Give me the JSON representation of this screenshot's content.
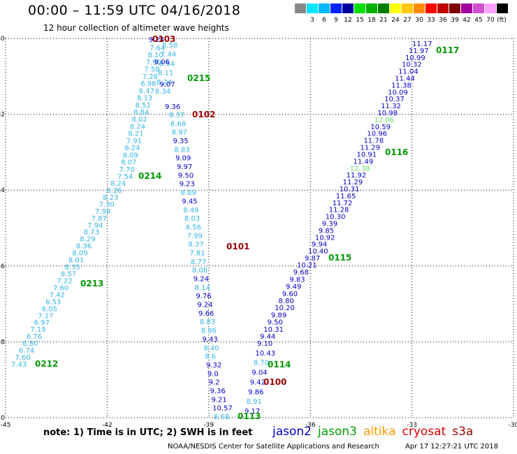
{
  "title": "00:00 – 11:59 UTC 04/16/2018",
  "subtitle": "12 hour collection of altimeter wave heights",
  "legend": {
    "unit": "(ft)",
    "levels": [
      {
        "label": "",
        "color": "#888888"
      },
      {
        "label": "3",
        "color": "#00e5ff"
      },
      {
        "label": "6",
        "color": "#00b8ff"
      },
      {
        "label": "9",
        "color": "#0022ff"
      },
      {
        "label": "12",
        "color": "#0000a0"
      },
      {
        "label": "15",
        "color": "#00e000"
      },
      {
        "label": "18",
        "color": "#00b000"
      },
      {
        "label": "21",
        "color": "#008000"
      },
      {
        "label": "24",
        "color": "#ffff00"
      },
      {
        "label": "27",
        "color": "#ffc800"
      },
      {
        "label": "30",
        "color": "#ff8c00"
      },
      {
        "label": "33",
        "color": "#ff0000"
      },
      {
        "label": "36",
        "color": "#c00000"
      },
      {
        "label": "39",
        "color": "#800000"
      },
      {
        "label": "42",
        "color": "#a000a0"
      },
      {
        "label": "45",
        "color": "#d050d0"
      },
      {
        "label": "70",
        "color": "#ffa0ff"
      },
      {
        "label": "(ft)",
        "color": "#000000"
      }
    ]
  },
  "axes": {
    "lat_ticks": [
      "-30",
      "-32",
      "-34",
      "-36",
      "-38",
      "-40"
    ],
    "lon_ticks": [
      "-45",
      "-42",
      "-39",
      "-36",
      "-33",
      "-30"
    ]
  },
  "colors": {
    "cyan": "#33b5e5",
    "blue": "#0000cc",
    "green": "#009900",
    "lightgreen": "#66e066",
    "maroon": "#990000"
  },
  "tracks": {
    "track_0213_0212": {
      "color": "cyan",
      "values": [
        "8.24",
        "8.26",
        "8.23",
        "7.30",
        "7.99",
        "7.87",
        "7.94",
        "8.73",
        "8.29",
        "8.36",
        "8.09",
        "8.01",
        "8.35",
        "8.57",
        "7.22",
        "7.60",
        "7.42",
        "6.53",
        "6.05",
        "7.17",
        "6.97",
        "7.19",
        "6.76",
        "6.80",
        "6.74",
        "7.60",
        "7.43"
      ]
    },
    "track_0215_0214": {
      "color": "cyan",
      "values": [
        "7.64",
        "8.10",
        "7.90",
        "7.58",
        "7.28",
        "6.98",
        "6.47",
        "8.13",
        "8.52",
        "8.84",
        "8.02",
        "8.24",
        "8.21",
        "7.91",
        "8.24",
        "8.09",
        "8.07",
        "7.70",
        "7.54"
      ]
    },
    "track_0103_0102_pass": {
      "color": "cyan",
      "values": [
        "8.58",
        "7.44",
        "8.54",
        "8.11",
        "8.24",
        "8.34"
      ]
    },
    "track_0103_0102_pass_blue": {
      "color": "blue",
      "values": [
        "9.24",
        "9.06",
        "9.07",
        "9.36"
      ]
    },
    "track_0102_0101": {
      "color": "mixed",
      "values": [
        {
          "v": "8.37",
          "c": "cyan"
        },
        {
          "v": "8.68",
          "c": "cyan"
        },
        {
          "v": "8.97",
          "c": "cyan"
        },
        {
          "v": "9.35",
          "c": "blue"
        },
        {
          "v": "8.83",
          "c": "cyan"
        },
        {
          "v": "9.09",
          "c": "blue"
        },
        {
          "v": "9.97",
          "c": "blue"
        },
        {
          "v": "9.50",
          "c": "blue"
        },
        {
          "v": "9.23",
          "c": "blue"
        },
        {
          "v": "8.89",
          "c": "cyan"
        },
        {
          "v": "9.45",
          "c": "blue"
        },
        {
          "v": "8.49",
          "c": "cyan"
        },
        {
          "v": "8.03",
          "c": "cyan"
        },
        {
          "v": "8.56",
          "c": "cyan"
        },
        {
          "v": "7.99",
          "c": "cyan"
        },
        {
          "v": "8.37",
          "c": "cyan"
        },
        {
          "v": "7.81",
          "c": "cyan"
        },
        {
          "v": "8.77",
          "c": "cyan"
        },
        {
          "v": "8.08",
          "c": "cyan"
        },
        {
          "v": "9.24",
          "c": "blue"
        },
        {
          "v": "8.14",
          "c": "cyan"
        },
        {
          "v": "9.76",
          "c": "blue"
        },
        {
          "v": "9.24",
          "c": "blue"
        },
        {
          "v": "9.66",
          "c": "blue"
        },
        {
          "v": "8.83",
          "c": "cyan"
        },
        {
          "v": "8.86",
          "c": "cyan"
        },
        {
          "v": "9.43",
          "c": "blue"
        },
        {
          "v": "8.40",
          "c": "cyan"
        },
        {
          "v": "8.6",
          "c": "cyan"
        },
        {
          "v": "9.32",
          "c": "blue"
        },
        {
          "v": "9.0",
          "c": "blue"
        },
        {
          "v": "9.2",
          "c": "blue"
        },
        {
          "v": "9.36",
          "c": "blue"
        },
        {
          "v": "9.21",
          "c": "blue"
        },
        {
          "v": "10.57",
          "c": "blue"
        },
        {
          "v": "8.68",
          "c": "cyan"
        }
      ]
    },
    "track_0113_0114": {
      "color": "mixed",
      "values": [
        {
          "v": "9.10",
          "c": "blue"
        },
        {
          "v": "10.43",
          "c": "blue"
        },
        {
          "v": "8.70",
          "c": "cyan"
        },
        {
          "v": "9.04",
          "c": "blue"
        },
        {
          "v": "9.42",
          "c": "blue"
        },
        {
          "v": "9.86",
          "c": "blue"
        },
        {
          "v": "8.91",
          "c": "cyan"
        },
        {
          "v": "9.17",
          "c": "blue"
        }
      ]
    },
    "track_0117_0115": {
      "color": "mixed",
      "values": [
        {
          "v": "11.17",
          "c": "blue"
        },
        {
          "v": "11.97",
          "c": "blue"
        },
        {
          "v": "10.99",
          "c": "blue"
        },
        {
          "v": "10.32",
          "c": "blue"
        },
        {
          "v": "11.04",
          "c": "blue"
        },
        {
          "v": "11.44",
          "c": "blue"
        },
        {
          "v": "11.38",
          "c": "blue"
        },
        {
          "v": "10.09",
          "c": "blue"
        },
        {
          "v": "10.37",
          "c": "blue"
        },
        {
          "v": "11.32",
          "c": "blue"
        },
        {
          "v": "10.98",
          "c": "blue"
        },
        {
          "v": "12.06",
          "c": "lightgreen"
        },
        {
          "v": "10.59",
          "c": "blue"
        },
        {
          "v": "10.96",
          "c": "blue"
        },
        {
          "v": "11.78",
          "c": "blue"
        },
        {
          "v": "11.29",
          "c": "blue"
        },
        {
          "v": "10.91",
          "c": "blue"
        },
        {
          "v": "11.49",
          "c": "blue"
        },
        {
          "v": "12.38",
          "c": "lightgreen"
        },
        {
          "v": "11.92",
          "c": "blue"
        },
        {
          "v": "11.29",
          "c": "blue"
        },
        {
          "v": "10.31",
          "c": "blue"
        },
        {
          "v": "11.65",
          "c": "blue"
        },
        {
          "v": "11.72",
          "c": "blue"
        },
        {
          "v": "11.28",
          "c": "blue"
        },
        {
          "v": "10.30",
          "c": "blue"
        },
        {
          "v": "9.39",
          "c": "blue"
        },
        {
          "v": "9.85",
          "c": "blue"
        },
        {
          "v": "10.92",
          "c": "blue"
        },
        {
          "v": "9.94",
          "c": "blue"
        },
        {
          "v": "10.40",
          "c": "blue"
        },
        {
          "v": "9.87",
          "c": "blue"
        }
      ]
    },
    "track_0115_0114": {
      "color": "blue",
      "values": [
        "10.21",
        "9.68",
        "9.83",
        "9.49",
        "9.60",
        "8.80",
        "10.20",
        "9.89",
        "9.50",
        "10.31",
        "9.44"
      ]
    }
  },
  "time_labels": [
    {
      "text": "0103",
      "c": "maroon"
    },
    {
      "text": "0215",
      "c": "green"
    },
    {
      "text": "0102",
      "c": "maroon"
    },
    {
      "text": "0214",
      "c": "green"
    },
    {
      "text": "0213",
      "c": "green"
    },
    {
      "text": "0212",
      "c": "green"
    },
    {
      "text": "0101",
      "c": "maroon"
    },
    {
      "text": "0100",
      "c": "maroon"
    },
    {
      "text": "0114",
      "c": "green"
    },
    {
      "text": "0113",
      "c": "green"
    },
    {
      "text": "0117",
      "c": "green"
    },
    {
      "text": "0116",
      "c": "green"
    },
    {
      "text": "0115",
      "c": "green"
    }
  ],
  "note": "note:  1) Time is in UTC;  2) SWH is in feet",
  "satellites": [
    {
      "name": "jason2",
      "color": "#0000cc"
    },
    {
      "name": "jason3",
      "color": "#00a000"
    },
    {
      "name": "altika",
      "color": "#ff9900"
    },
    {
      "name": "cryosat",
      "color": "#dd0000"
    },
    {
      "name": "s3a",
      "color": "#990000"
    }
  ],
  "credit": "NOAA/NESDIS Center for Satellite Applications and Research",
  "timestamp": "Apr 17 12:27:21 UTC 2018"
}
